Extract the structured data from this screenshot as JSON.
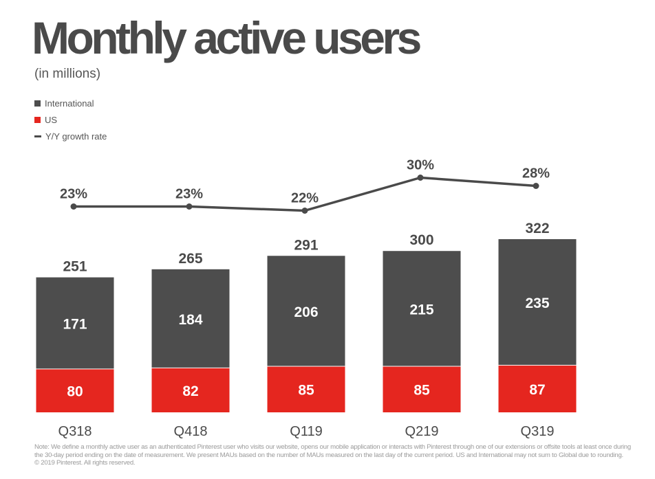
{
  "title": "Monthly active users",
  "subtitle": "(in millions)",
  "colors": {
    "international": "#4d4d4d",
    "us": "#e5261f",
    "growth_line": "#4a4a4a"
  },
  "legend": [
    {
      "label": "International",
      "color": "#4d4d4d",
      "kind": "box"
    },
    {
      "label": "US",
      "color": "#e5261f",
      "kind": "box"
    },
    {
      "label": "Y/Y growth rate",
      "color": "#4a4a4a",
      "kind": "line"
    }
  ],
  "chart_data": {
    "type": "bar",
    "stacked": true,
    "categories": [
      "Q318",
      "Q418",
      "Q119",
      "Q219",
      "Q319"
    ],
    "series": [
      {
        "name": "US",
        "values": [
          80,
          82,
          85,
          85,
          87
        ],
        "color": "#e5261f"
      },
      {
        "name": "International",
        "values": [
          171,
          184,
          206,
          215,
          235
        ],
        "color": "#4d4d4d"
      }
    ],
    "totals": [
      251,
      265,
      291,
      300,
      322
    ],
    "growth_rate": {
      "name": "Y/Y growth rate",
      "values": [
        23,
        23,
        22,
        30,
        28
      ],
      "labels": [
        "23%",
        "23%",
        "22%",
        "30%",
        "28%"
      ]
    },
    "ylim": [
      0,
      400
    ],
    "grid": false,
    "legend_position": "top-left"
  },
  "footnote": {
    "lines": [
      "Note: We define a monthly active user as an authenticated Pinterest user who visits our website, opens our mobile application or interacts with Pinterest through one of our extensions or offsite tools at least once during",
      "the 30-day period ending on the date of measurement. We present MAUs based on the number of MAUs measured on the last day of the current period. US and International may not sum to Global due to rounding.",
      "© 2019 Pinterest. All rights reserved."
    ]
  }
}
